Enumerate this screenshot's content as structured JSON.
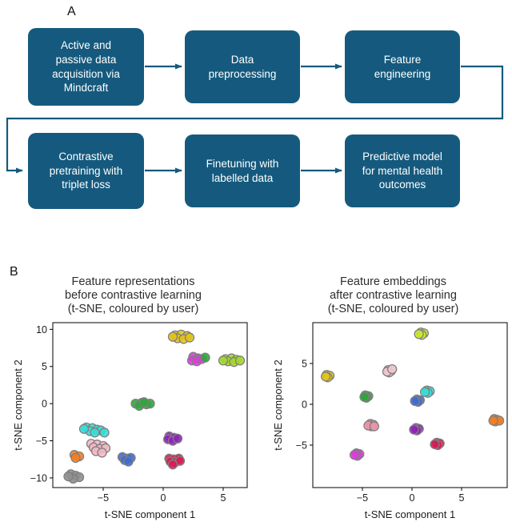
{
  "figure": {
    "panel_a_label": "A",
    "panel_b_label": "B",
    "background": "#ffffff"
  },
  "flowchart": {
    "box_color": "#155a7e",
    "text_color": "#ffffff",
    "boxes": [
      {
        "id": "acquisition",
        "label": "Active and\npassive data\nacquisition via\nMindcraft"
      },
      {
        "id": "preprocessing",
        "label": "Data\npreprocessing"
      },
      {
        "id": "feature-engineering",
        "label": "Feature\nengineering"
      },
      {
        "id": "contrastive-pretraining",
        "label": "Contrastive\npretraining with\ntriplet loss"
      },
      {
        "id": "finetuning",
        "label": "Finetuning with\nlabelled data"
      },
      {
        "id": "predictive-model",
        "label": "Predictive model\nfor mental health\noutcomes"
      }
    ],
    "flow_order": [
      "acquisition",
      "preprocessing",
      "feature-engineering",
      "contrastive-pretraining",
      "finetuning",
      "predictive-model"
    ]
  },
  "chart_data": [
    {
      "type": "scatter",
      "title": "Feature representations\nbefore contrastive learning\n(t-SNE, coloured by user)",
      "xlabel": "t-SNE component 1",
      "ylabel": "t-SNE component 2",
      "xlim": [
        -9.2,
        7.0
      ],
      "ylim": [
        -11.3,
        10.9
      ],
      "xticks": [
        -5,
        0,
        5
      ],
      "yticks": [
        -10,
        -5,
        0,
        5,
        10
      ],
      "grid": false,
      "legend": "none",
      "marker_edge": "#7f7f7f",
      "marker_radius": 5.5,
      "series": [
        {
          "name": "user-yellow",
          "color": "#e4c417",
          "points": [
            [
              1.0,
              9.2
            ],
            [
              1.5,
              9.3
            ],
            [
              2.0,
              9.1
            ],
            [
              1.2,
              8.8
            ],
            [
              1.7,
              8.7
            ],
            [
              2.2,
              8.9
            ],
            [
              0.8,
              9.0
            ]
          ]
        },
        {
          "name": "user-magenta",
          "color": "#e03ae0",
          "points": [
            [
              2.5,
              6.3
            ],
            [
              2.9,
              6.1
            ],
            [
              2.4,
              5.8
            ],
            [
              2.8,
              5.7
            ],
            [
              3.2,
              6.0
            ]
          ]
        },
        {
          "name": "user-yellowgreen",
          "color": "#a6d82a",
          "points": [
            [
              5.2,
              6.0
            ],
            [
              5.7,
              6.1
            ],
            [
              6.1,
              5.9
            ],
            [
              5.4,
              5.7
            ],
            [
              5.9,
              5.6
            ],
            [
              6.4,
              5.8
            ],
            [
              5.0,
              5.8
            ]
          ]
        },
        {
          "name": "user-green",
          "color": "#2fa63b",
          "points": [
            [
              -2.3,
              0.0
            ],
            [
              -1.8,
              0.1
            ],
            [
              -1.4,
              -0.1
            ],
            [
              -2.0,
              -0.3
            ],
            [
              -1.1,
              0.0
            ],
            [
              -1.6,
              0.2
            ],
            [
              3.5,
              6.2
            ]
          ]
        },
        {
          "name": "user-cyan",
          "color": "#35dfd8",
          "points": [
            [
              -6.4,
              -3.2
            ],
            [
              -5.9,
              -3.3
            ],
            [
              -5.5,
              -3.5
            ],
            [
              -6.1,
              -3.7
            ],
            [
              -5.2,
              -3.6
            ],
            [
              -5.7,
              -3.9
            ],
            [
              -4.9,
              -3.9
            ],
            [
              -6.6,
              -3.4
            ]
          ]
        },
        {
          "name": "user-pink",
          "color": "#f4b8c6",
          "points": [
            [
              -6.0,
              -5.4
            ],
            [
              -5.5,
              -5.5
            ],
            [
              -5.0,
              -5.7
            ],
            [
              -5.8,
              -5.9
            ],
            [
              -5.3,
              -6.1
            ],
            [
              -4.8,
              -6.0
            ],
            [
              -5.6,
              -6.4
            ],
            [
              -5.1,
              -6.6
            ]
          ]
        },
        {
          "name": "user-purple",
          "color": "#8d22b8",
          "points": [
            [
              0.5,
              -4.4
            ],
            [
              0.9,
              -4.6
            ],
            [
              0.4,
              -4.8
            ],
            [
              0.8,
              -5.0
            ],
            [
              1.2,
              -4.7
            ]
          ]
        },
        {
          "name": "user-orange",
          "color": "#f57e20",
          "points": [
            [
              -7.4,
              -6.9
            ],
            [
              -7.0,
              -7.1
            ],
            [
              -7.3,
              -7.3
            ]
          ]
        },
        {
          "name": "user-blue",
          "color": "#3e6cd1",
          "points": [
            [
              -3.4,
              -7.2
            ],
            [
              -3.0,
              -7.4
            ],
            [
              -2.7,
              -7.3
            ],
            [
              -3.2,
              -7.6
            ],
            [
              -2.9,
              -7.8
            ]
          ]
        },
        {
          "name": "user-crimson",
          "color": "#d81b55",
          "points": [
            [
              0.5,
              -7.4
            ],
            [
              0.9,
              -7.5
            ],
            [
              1.3,
              -7.4
            ],
            [
              0.6,
              -7.8
            ],
            [
              1.0,
              -7.9
            ],
            [
              1.4,
              -7.7
            ],
            [
              0.8,
              -8.2
            ]
          ]
        },
        {
          "name": "user-gray",
          "color": "#909090",
          "points": [
            [
              -7.7,
              -9.5
            ],
            [
              -7.3,
              -9.7
            ],
            [
              -7.0,
              -9.9
            ],
            [
              -7.5,
              -10.1
            ],
            [
              -7.9,
              -9.8
            ]
          ]
        }
      ]
    },
    {
      "type": "scatter",
      "title": "Feature embeddings\nafter contrastive learning\n(t-SNE, coloured by user)",
      "xlabel": "t-SNE component 1",
      "ylabel": "t-SNE component 2",
      "xlim": [
        -10.0,
        9.6
      ],
      "ylim": [
        -10.2,
        10.0
      ],
      "xticks": [
        -5,
        0,
        5
      ],
      "yticks": [
        -5,
        0,
        5
      ],
      "grid": false,
      "legend": "none",
      "marker_edge": "#7f7f7f",
      "marker_radius": 5.5,
      "series": [
        {
          "name": "user-yellowgreen",
          "color": "#c8e82e",
          "points": [
            [
              0.9,
              8.8
            ],
            [
              1.2,
              8.7
            ],
            [
              1.0,
              8.5
            ],
            [
              0.7,
              8.6
            ]
          ]
        },
        {
          "name": "user-yellow",
          "color": "#e4c417",
          "points": [
            [
              -8.6,
              3.6
            ],
            [
              -8.3,
              3.5
            ],
            [
              -8.5,
              3.3
            ],
            [
              -8.7,
              3.4
            ]
          ]
        },
        {
          "name": "user-lightpink",
          "color": "#f2c9d2",
          "points": [
            [
              -2.4,
              4.2
            ],
            [
              -2.1,
              4.1
            ],
            [
              -2.3,
              3.9
            ],
            [
              -2.5,
              4.0
            ],
            [
              -2.0,
              4.3
            ]
          ]
        },
        {
          "name": "user-green",
          "color": "#2fa63b",
          "points": [
            [
              -4.7,
              1.1
            ],
            [
              -4.4,
              1.0
            ],
            [
              -4.6,
              0.8
            ],
            [
              -4.8,
              0.9
            ]
          ]
        },
        {
          "name": "user-cyan",
          "color": "#35dfd8",
          "points": [
            [
              1.5,
              1.7
            ],
            [
              1.8,
              1.6
            ],
            [
              1.6,
              1.4
            ],
            [
              1.3,
              1.5
            ]
          ]
        },
        {
          "name": "user-blue",
          "color": "#3e6cd1",
          "points": [
            [
              0.5,
              0.6
            ],
            [
              0.8,
              0.5
            ],
            [
              0.6,
              0.3
            ],
            [
              0.3,
              0.4
            ]
          ]
        },
        {
          "name": "user-orange",
          "color": "#f57e20",
          "points": [
            [
              8.3,
              -1.8
            ],
            [
              8.6,
              -1.9
            ],
            [
              8.4,
              -2.1
            ],
            [
              8.8,
              -2.0
            ],
            [
              8.2,
              -2.0
            ]
          ]
        },
        {
          "name": "user-rose",
          "color": "#ef93a8",
          "points": [
            [
              -4.2,
              -2.4
            ],
            [
              -3.9,
              -2.5
            ],
            [
              -4.1,
              -2.7
            ],
            [
              -4.4,
              -2.6
            ],
            [
              -3.8,
              -2.7
            ]
          ]
        },
        {
          "name": "user-purple",
          "color": "#8d22b8",
          "points": [
            [
              0.4,
              -2.9
            ],
            [
              0.7,
              -3.0
            ],
            [
              0.5,
              -3.2
            ],
            [
              0.2,
              -3.1
            ]
          ]
        },
        {
          "name": "user-magenta",
          "color": "#e03ae0",
          "points": [
            [
              -5.6,
              -6.0
            ],
            [
              -5.3,
              -6.1
            ],
            [
              -5.5,
              -6.3
            ],
            [
              -5.8,
              -6.2
            ]
          ]
        },
        {
          "name": "user-crimson",
          "color": "#d81b55",
          "points": [
            [
              2.5,
              -4.7
            ],
            [
              2.8,
              -4.8
            ],
            [
              2.6,
              -5.0
            ],
            [
              2.3,
              -4.9
            ]
          ]
        }
      ]
    }
  ]
}
